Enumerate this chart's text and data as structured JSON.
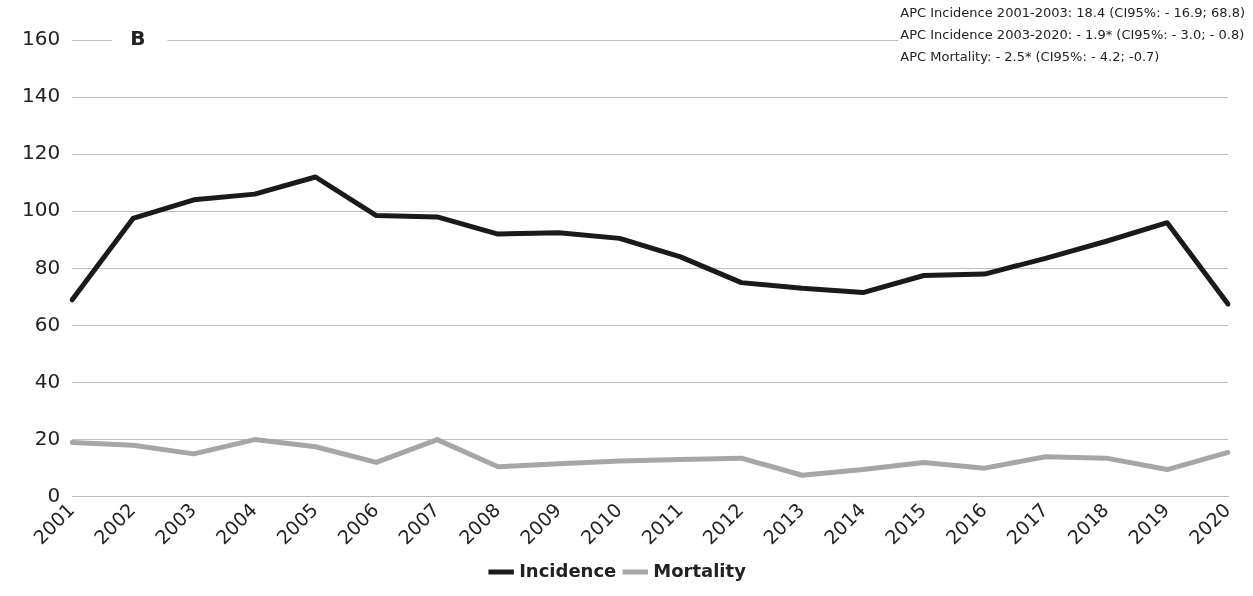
{
  "chart_data": {
    "type": "line",
    "title": "B",
    "categories": [
      "2001",
      "2002",
      "2003",
      "2004",
      "2005",
      "2006",
      "2007",
      "2008",
      "2009",
      "2010",
      "2011",
      "2012",
      "2013",
      "2014",
      "2015",
      "2016",
      "2017",
      "2018",
      "2019",
      "2020"
    ],
    "series": [
      {
        "name": "Incidence",
        "color": "#1a1a1a",
        "values": [
          69,
          97.5,
          104,
          106,
          112,
          98.5,
          98,
          92,
          92.5,
          90.5,
          84,
          75,
          73,
          71.5,
          77.5,
          78,
          83.5,
          89.5,
          96,
          67.5
        ]
      },
      {
        "name": "Mortality",
        "color": "#a6a6a6",
        "values": [
          19,
          18,
          15,
          20,
          17.5,
          12,
          20,
          10.5,
          11.5,
          12.5,
          13,
          13.5,
          7.5,
          9.5,
          12,
          10,
          14,
          13.5,
          9.5,
          15.5
        ]
      }
    ],
    "ylim": [
      0,
      160
    ],
    "yticks": [
      0,
      20,
      40,
      60,
      80,
      100,
      120,
      140,
      160
    ],
    "grid": "y",
    "legend": "bottom",
    "marker": "none",
    "line_style": "solid",
    "annotations": [
      "APC Incidence 2001-2003: 18.4 (CI95%: - 16.9; 68.8)",
      "APC Incidence 2003-2020: - 1.9* (CI95%: - 3.0; - 0.8)",
      "APC Mortality: - 2.5* (CI95%: - 4.2; -0.7)"
    ]
  }
}
